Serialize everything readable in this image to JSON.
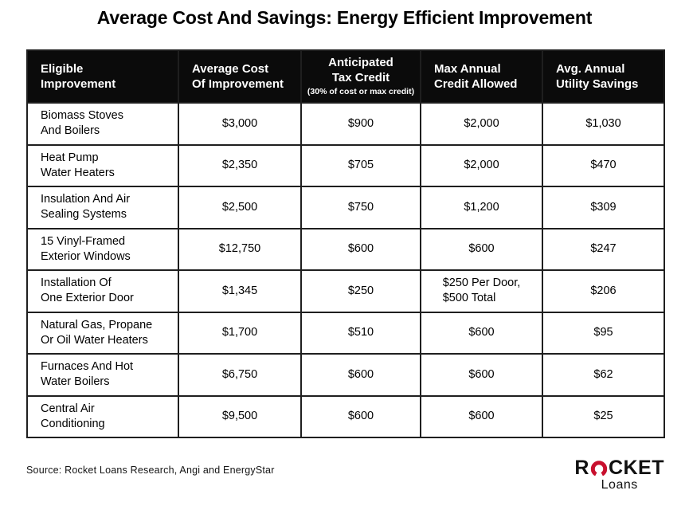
{
  "title": "Average Cost And Savings: Energy Efficient Improvement",
  "colors": {
    "accent_red": "#c8102e",
    "header_bg": "#0b0b0b",
    "border": "#1f1f1f"
  },
  "chart_data": {
    "type": "table",
    "title": "Average Cost And Savings: Energy Efficient Improvement",
    "columns": [
      {
        "label": "Eligible\nImprovement",
        "sub": "",
        "align": "left"
      },
      {
        "label": "Average Cost\nOf Improvement",
        "sub": "",
        "align": "left"
      },
      {
        "label": "Anticipated\nTax Credit",
        "sub": "(30% of cost or max credit)",
        "align": "center"
      },
      {
        "label": "Max Annual\nCredit Allowed",
        "sub": "",
        "align": "left"
      },
      {
        "label": "Avg. Annual\nUtility Savings",
        "sub": "",
        "align": "left"
      }
    ],
    "rows": [
      {
        "improvement": "Biomass Stoves\nAnd Boilers",
        "avg_cost": "$3,000",
        "tax_credit": "$900",
        "max_credit": "$2,000",
        "utility_savings": "$1,030"
      },
      {
        "improvement": "Heat Pump\nWater Heaters",
        "avg_cost": "$2,350",
        "tax_credit": "$705",
        "max_credit": "$2,000",
        "utility_savings": "$470"
      },
      {
        "improvement": "Insulation And Air\nSealing Systems",
        "avg_cost": "$2,500",
        "tax_credit": "$750",
        "max_credit": "$1,200",
        "utility_savings": "$309"
      },
      {
        "improvement": "15 Vinyl-Framed\nExterior Windows",
        "avg_cost": "$12,750",
        "tax_credit": "$600",
        "max_credit": "$600",
        "utility_savings": "$247"
      },
      {
        "improvement": "Installation Of\nOne Exterior Door",
        "avg_cost": "$1,345",
        "tax_credit": "$250",
        "max_credit": "$250 Per Door,\n$500 Total",
        "utility_savings": "$206"
      },
      {
        "improvement": "Natural Gas, Propane\nOr Oil Water Heaters",
        "avg_cost": "$1,700",
        "tax_credit": "$510",
        "max_credit": "$600",
        "utility_savings": "$95"
      },
      {
        "improvement": "Furnaces And Hot\nWater Boilers",
        "avg_cost": "$6,750",
        "tax_credit": "$600",
        "max_credit": "$600",
        "utility_savings": "$62"
      },
      {
        "improvement": "Central Air\nConditioning",
        "avg_cost": "$9,500",
        "tax_credit": "$600",
        "max_credit": "$600",
        "utility_savings": "$25"
      }
    ]
  },
  "footer": {
    "source": "Source: Rocket Loans Research, Angi and EnergyStar",
    "logo": {
      "prefix": "R",
      "suffix": "CKET",
      "subtext": "Loans"
    }
  }
}
